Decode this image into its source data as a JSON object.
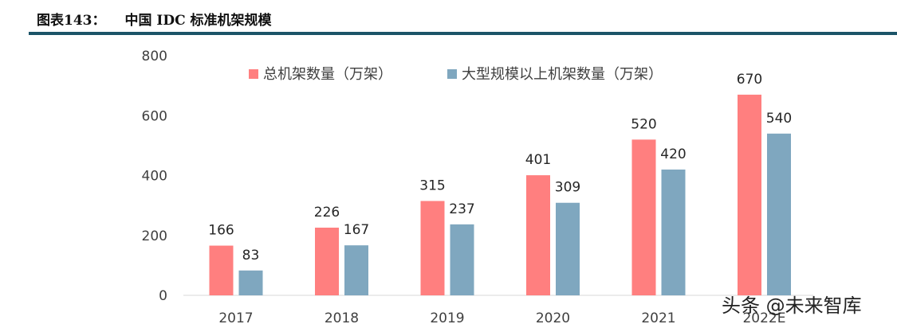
{
  "header": {
    "figure_number": "图表143：",
    "figure_title": "中国 IDC 标准机架规模"
  },
  "watermark": "头条 @未来智库",
  "colors": {
    "series1": "#FF7F7F",
    "series2": "#7FA7BF",
    "rule": "#1B5468"
  },
  "chart_data": {
    "type": "bar",
    "categories": [
      "2017",
      "2018",
      "2019",
      "2020",
      "2021",
      "2022E"
    ],
    "series": [
      {
        "name": "总机架数量（万架）",
        "values": [
          166,
          226,
          315,
          401,
          520,
          670
        ]
      },
      {
        "name": "大型规模以上机架数量（万架）",
        "values": [
          83,
          167,
          237,
          309,
          420,
          540
        ]
      }
    ],
    "yticks": [
      "0",
      "200",
      "400",
      "600",
      "800"
    ],
    "ylim": [
      0,
      800
    ],
    "grid": false,
    "legend_position": "top"
  }
}
